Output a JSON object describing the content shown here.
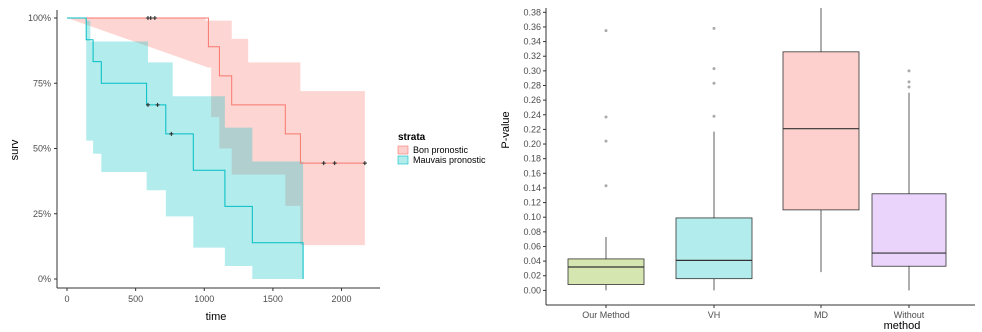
{
  "chart_data": [
    {
      "type": "line",
      "subtype": "kaplan-meier",
      "xlabel": "time",
      "ylabel": "surv",
      "xlim": [
        0,
        2200
      ],
      "ylim": [
        0,
        1
      ],
      "x_ticks": [
        0,
        500,
        1000,
        1500,
        2000
      ],
      "y_ticks": [
        {
          "value": 0,
          "label": "0%"
        },
        {
          "value": 0.25,
          "label": "25%"
        },
        {
          "value": 0.5,
          "label": "50%"
        },
        {
          "value": 0.75,
          "label": "75%"
        },
        {
          "value": 1,
          "label": "100%"
        }
      ],
      "grid": false,
      "legend": {
        "title": "strata",
        "position": "right"
      },
      "series": [
        {
          "name": "Bon pronostic",
          "color": "#f8766d",
          "fill": "#f8766d",
          "steps": [
            [
              0,
              1.0
            ],
            [
              1030,
              1.0
            ],
            [
              1030,
              0.89
            ],
            [
              1110,
              0.89
            ],
            [
              1110,
              0.778
            ],
            [
              1200,
              0.778
            ],
            [
              1200,
              0.667
            ],
            [
              1590,
              0.667
            ],
            [
              1590,
              0.556
            ],
            [
              1700,
              0.556
            ],
            [
              1700,
              0.444
            ],
            [
              2170,
              0.444
            ]
          ],
          "ci_upper": [
            [
              0,
              1.0
            ],
            [
              1010,
              1.0
            ],
            [
              1010,
              0.99
            ],
            [
              1200,
              0.99
            ],
            [
              1200,
              0.92
            ],
            [
              1320,
              0.92
            ],
            [
              1320,
              0.83
            ],
            [
              1700,
              0.83
            ],
            [
              1700,
              0.72
            ],
            [
              2170,
              0.72
            ]
          ],
          "ci_lower": [
            [
              1030,
              0.81
            ],
            [
              1050,
              0.81
            ],
            [
              1050,
              0.62
            ],
            [
              1110,
              0.62
            ],
            [
              1110,
              0.5
            ],
            [
              1200,
              0.5
            ],
            [
              1200,
              0.4
            ],
            [
              1590,
              0.4
            ],
            [
              1590,
              0.28
            ],
            [
              1700,
              0.28
            ],
            [
              1700,
              0.13
            ],
            [
              2170,
              0.13
            ]
          ],
          "censors": [
            [
              590,
              1.0
            ],
            [
              610,
              1.0
            ],
            [
              640,
              1.0
            ],
            [
              1870,
              0.444
            ],
            [
              1950,
              0.444
            ],
            [
              2170,
              0.444
            ]
          ]
        },
        {
          "name": "Mauvais pronostic",
          "color": "#00bfc4",
          "fill": "#00bfc4",
          "steps": [
            [
              0,
              1.0
            ],
            [
              140,
              1.0
            ],
            [
              140,
              0.917
            ],
            [
              190,
              0.917
            ],
            [
              190,
              0.833
            ],
            [
              250,
              0.833
            ],
            [
              250,
              0.75
            ],
            [
              580,
              0.75
            ],
            [
              580,
              0.667
            ],
            [
              720,
              0.667
            ],
            [
              720,
              0.556
            ],
            [
              920,
              0.556
            ],
            [
              920,
              0.417
            ],
            [
              1150,
              0.417
            ],
            [
              1150,
              0.278
            ],
            [
              1350,
              0.278
            ],
            [
              1350,
              0.139
            ],
            [
              1720,
              0.139
            ],
            [
              1720,
              0.0
            ]
          ],
          "ci_upper": [
            [
              140,
              0.99
            ],
            [
              170,
              0.99
            ],
            [
              170,
              0.91
            ],
            [
              590,
              0.91
            ],
            [
              590,
              0.83
            ],
            [
              770,
              0.83
            ],
            [
              770,
              0.7
            ],
            [
              1150,
              0.7
            ],
            [
              1150,
              0.58
            ],
            [
              1350,
              0.58
            ],
            [
              1350,
              0.45
            ],
            [
              1720,
              0.45
            ]
          ],
          "ci_lower": [
            [
              140,
              0.53
            ],
            [
              190,
              0.53
            ],
            [
              190,
              0.48
            ],
            [
              250,
              0.48
            ],
            [
              250,
              0.41
            ],
            [
              580,
              0.41
            ],
            [
              580,
              0.34
            ],
            [
              720,
              0.34
            ],
            [
              720,
              0.24
            ],
            [
              920,
              0.24
            ],
            [
              920,
              0.12
            ],
            [
              1150,
              0.12
            ],
            [
              1150,
              0.05
            ],
            [
              1350,
              0.05
            ],
            [
              1350,
              0.0
            ],
            [
              1720,
              0.0
            ]
          ],
          "censors": [
            [
              590,
              0.667
            ],
            [
              660,
              0.667
            ],
            [
              760,
              0.556
            ]
          ]
        }
      ]
    },
    {
      "type": "box",
      "xlabel": "method",
      "ylabel": "P-value",
      "ylim": [
        -0.01,
        0.39
      ],
      "y_ticks": [
        0,
        0.02,
        0.04,
        0.06,
        0.08,
        0.1,
        0.12,
        0.14,
        0.16,
        0.18,
        0.2,
        0.22,
        0.24,
        0.26,
        0.28,
        0.3,
        0.32,
        0.34,
        0.36,
        0.38
      ],
      "y_tick_labels": [
        "0.00",
        "0.02",
        "0.04",
        "0.06",
        "0.08",
        "0.10",
        "0.12",
        "0.14",
        "0.16",
        "0.18",
        "0.20",
        "0.22",
        "0.24",
        "0.26",
        "0.28",
        "0.30",
        "0.32",
        "0.34",
        "0.36",
        "0.38"
      ],
      "categories": [
        "Our Method",
        "VH",
        "MD",
        "Without"
      ],
      "boxes": [
        {
          "category": "Our Method",
          "color": "#d6e6b1",
          "whisker_low": 0.0,
          "q1": 0.008,
          "median": 0.032,
          "q3": 0.043,
          "whisker_high": 0.073,
          "outliers": [
            0.143,
            0.204,
            0.237,
            0.355
          ]
        },
        {
          "category": "VH",
          "color": "#b3ecec",
          "whisker_low": 0.0,
          "q1": 0.016,
          "median": 0.041,
          "q3": 0.099,
          "whisker_high": 0.217,
          "outliers": [
            0.238,
            0.283,
            0.303,
            0.358
          ]
        },
        {
          "category": "MD",
          "color": "#fdd0cd",
          "whisker_low": 0.025,
          "q1": 0.11,
          "median": 0.221,
          "q3": 0.326,
          "whisker_high": 0.39,
          "outliers": []
        },
        {
          "category": "Without",
          "color": "#ead4fb",
          "whisker_low": 0.0,
          "q1": 0.033,
          "median": 0.051,
          "q3": 0.132,
          "whisker_high": 0.27,
          "outliers": [
            0.278,
            0.285,
            0.3
          ]
        }
      ]
    }
  ]
}
